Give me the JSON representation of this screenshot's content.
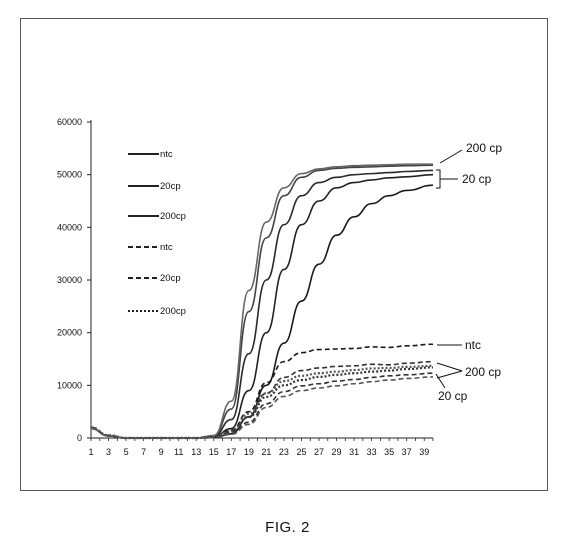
{
  "figure": {
    "caption": "FIG. 2"
  },
  "chart_data": {
    "type": "line",
    "title": "",
    "xlabel": "",
    "ylabel": "",
    "ylim": [
      0,
      60000
    ],
    "xlim": [
      1,
      40
    ],
    "y_ticks": [
      0,
      10000,
      20000,
      30000,
      40000,
      50000,
      60000
    ],
    "y_tick_labels": [
      "0",
      "10000",
      "20000",
      "30000",
      "40000",
      "50000",
      "60000"
    ],
    "x_ticks": [
      1,
      3,
      5,
      7,
      9,
      11,
      13,
      15,
      17,
      19,
      21,
      23,
      25,
      27,
      29,
      31,
      33,
      35,
      37,
      39
    ],
    "x_tick_labels": [
      "1",
      "3",
      "5",
      "7",
      "9",
      "11",
      "13",
      "15",
      "17",
      "19",
      "21",
      "23",
      "25",
      "27",
      "29",
      "31",
      "33",
      "35",
      "37",
      "39"
    ],
    "grid": false,
    "legend_position": "top-left",
    "legend": [
      "ntc",
      "20cp",
      "200cp",
      "ntc",
      "20cp",
      "200cp"
    ],
    "series": [
      {
        "name": "ntc",
        "style": "solid",
        "color": "#1a1a1a",
        "x": [
          1,
          3,
          5,
          7,
          9,
          11,
          13,
          15,
          17,
          19,
          21,
          23,
          25,
          27,
          29,
          31,
          33,
          35,
          37,
          40
        ],
        "y": [
          1800,
          400,
          0,
          0,
          0,
          0,
          0,
          100,
          800,
          4000,
          10000,
          18000,
          26000,
          33000,
          38500,
          42000,
          44500,
          46000,
          47000,
          48000
        ]
      },
      {
        "name": "20cp",
        "style": "solid",
        "color": "#222222",
        "x": [
          1,
          3,
          5,
          7,
          9,
          11,
          13,
          15,
          17,
          19,
          21,
          23,
          25,
          27,
          29,
          31,
          33,
          35,
          37,
          40
        ],
        "y": [
          1800,
          400,
          0,
          0,
          0,
          0,
          0,
          200,
          1800,
          9000,
          20000,
          32000,
          40500,
          45000,
          47500,
          48500,
          49000,
          49400,
          49600,
          50000
        ]
      },
      {
        "name": "20cp",
        "style": "solid",
        "color": "#2a2a2a",
        "x": [
          1,
          3,
          5,
          7,
          9,
          11,
          13,
          15,
          17,
          19,
          21,
          23,
          25,
          27,
          29,
          31,
          33,
          35,
          37,
          40
        ],
        "y": [
          1800,
          400,
          0,
          0,
          0,
          0,
          0,
          300,
          3500,
          16000,
          30000,
          40500,
          46000,
          48500,
          49500,
          50000,
          50200,
          50400,
          50600,
          50800
        ]
      },
      {
        "name": "200cp",
        "style": "solid",
        "color": "#444444",
        "x": [
          1,
          3,
          5,
          7,
          9,
          11,
          13,
          15,
          17,
          19,
          21,
          23,
          25,
          27,
          29,
          31,
          33,
          35,
          37,
          40
        ],
        "y": [
          1800,
          400,
          0,
          0,
          0,
          0,
          0,
          400,
          5500,
          24000,
          38000,
          46000,
          49500,
          50800,
          51200,
          51400,
          51500,
          51600,
          51700,
          51800
        ]
      },
      {
        "name": "200cp",
        "style": "solid",
        "color": "#666666",
        "x": [
          1,
          3,
          5,
          7,
          9,
          11,
          13,
          15,
          17,
          19,
          21,
          23,
          25,
          27,
          29,
          31,
          33,
          35,
          37,
          40
        ],
        "y": [
          1800,
          400,
          0,
          0,
          0,
          0,
          0,
          500,
          7000,
          28000,
          41000,
          47500,
          50200,
          51100,
          51500,
          51700,
          51800,
          51900,
          52000,
          52000
        ]
      },
      {
        "name": "ntc",
        "style": "dash",
        "color": "#1a1a1a",
        "x": [
          1,
          3,
          5,
          7,
          9,
          11,
          13,
          15,
          17,
          19,
          21,
          23,
          25,
          27,
          29,
          31,
          33,
          35,
          37,
          40
        ],
        "y": [
          2000,
          500,
          0,
          0,
          0,
          0,
          0,
          200,
          1500,
          5000,
          10500,
          14500,
          16200,
          16800,
          16900,
          17000,
          17300,
          17200,
          17500,
          17800
        ]
      },
      {
        "name": "ntc",
        "style": "dash",
        "color": "#333333",
        "x": [
          1,
          3,
          5,
          7,
          9,
          11,
          13,
          15,
          17,
          19,
          21,
          23,
          25,
          27,
          29,
          31,
          33,
          35,
          37,
          40
        ],
        "y": [
          2000,
          500,
          0,
          0,
          0,
          0,
          0,
          200,
          1200,
          4000,
          8500,
          11500,
          12800,
          13300,
          13600,
          13700,
          14000,
          13900,
          14200,
          14500
        ]
      },
      {
        "name": "20cp",
        "style": "dash",
        "color": "#333333",
        "x": [
          1,
          3,
          5,
          7,
          9,
          11,
          13,
          15,
          17,
          19,
          21,
          23,
          25,
          27,
          29,
          31,
          33,
          35,
          37,
          40
        ],
        "y": [
          2000,
          500,
          0,
          0,
          0,
          0,
          0,
          100,
          800,
          3000,
          6500,
          8800,
          9900,
          10300,
          10800,
          11100,
          11500,
          11800,
          12000,
          12300
        ]
      },
      {
        "name": "20cp",
        "style": "dash",
        "color": "#555555",
        "x": [
          1,
          3,
          5,
          7,
          9,
          11,
          13,
          15,
          17,
          19,
          21,
          23,
          25,
          27,
          29,
          31,
          33,
          35,
          37,
          40
        ],
        "y": [
          2000,
          500,
          0,
          0,
          0,
          0,
          0,
          100,
          700,
          2600,
          5800,
          7900,
          9000,
          9500,
          9900,
          10300,
          10700,
          11000,
          11300,
          11600
        ]
      },
      {
        "name": "200cp",
        "style": "dot",
        "color": "#333333",
        "x": [
          1,
          3,
          5,
          7,
          9,
          11,
          13,
          15,
          17,
          19,
          21,
          23,
          25,
          27,
          29,
          31,
          33,
          35,
          37,
          40
        ],
        "y": [
          2000,
          500,
          0,
          0,
          0,
          0,
          0,
          150,
          1200,
          4000,
          7800,
          10000,
          11000,
          11600,
          12000,
          12300,
          12600,
          12800,
          13100,
          13400
        ]
      },
      {
        "name": "200cp",
        "style": "dot",
        "color": "#555555",
        "x": [
          1,
          3,
          5,
          7,
          9,
          11,
          13,
          15,
          17,
          19,
          21,
          23,
          25,
          27,
          29,
          31,
          33,
          35,
          37,
          40
        ],
        "y": [
          2000,
          500,
          0,
          0,
          0,
          0,
          0,
          150,
          1400,
          4600,
          8500,
          10800,
          11800,
          12300,
          12600,
          12900,
          13200,
          13300,
          13500,
          13700
        ]
      }
    ],
    "annotations": [
      {
        "text": "200 cp",
        "group": "solid-200"
      },
      {
        "text": "20 cp",
        "group": "solid-20"
      },
      {
        "text": "ntc",
        "group": "dash-ntc"
      },
      {
        "text": "200 cp",
        "group": "dash-200"
      },
      {
        "text": "20 cp",
        "group": "dash-20"
      }
    ]
  }
}
